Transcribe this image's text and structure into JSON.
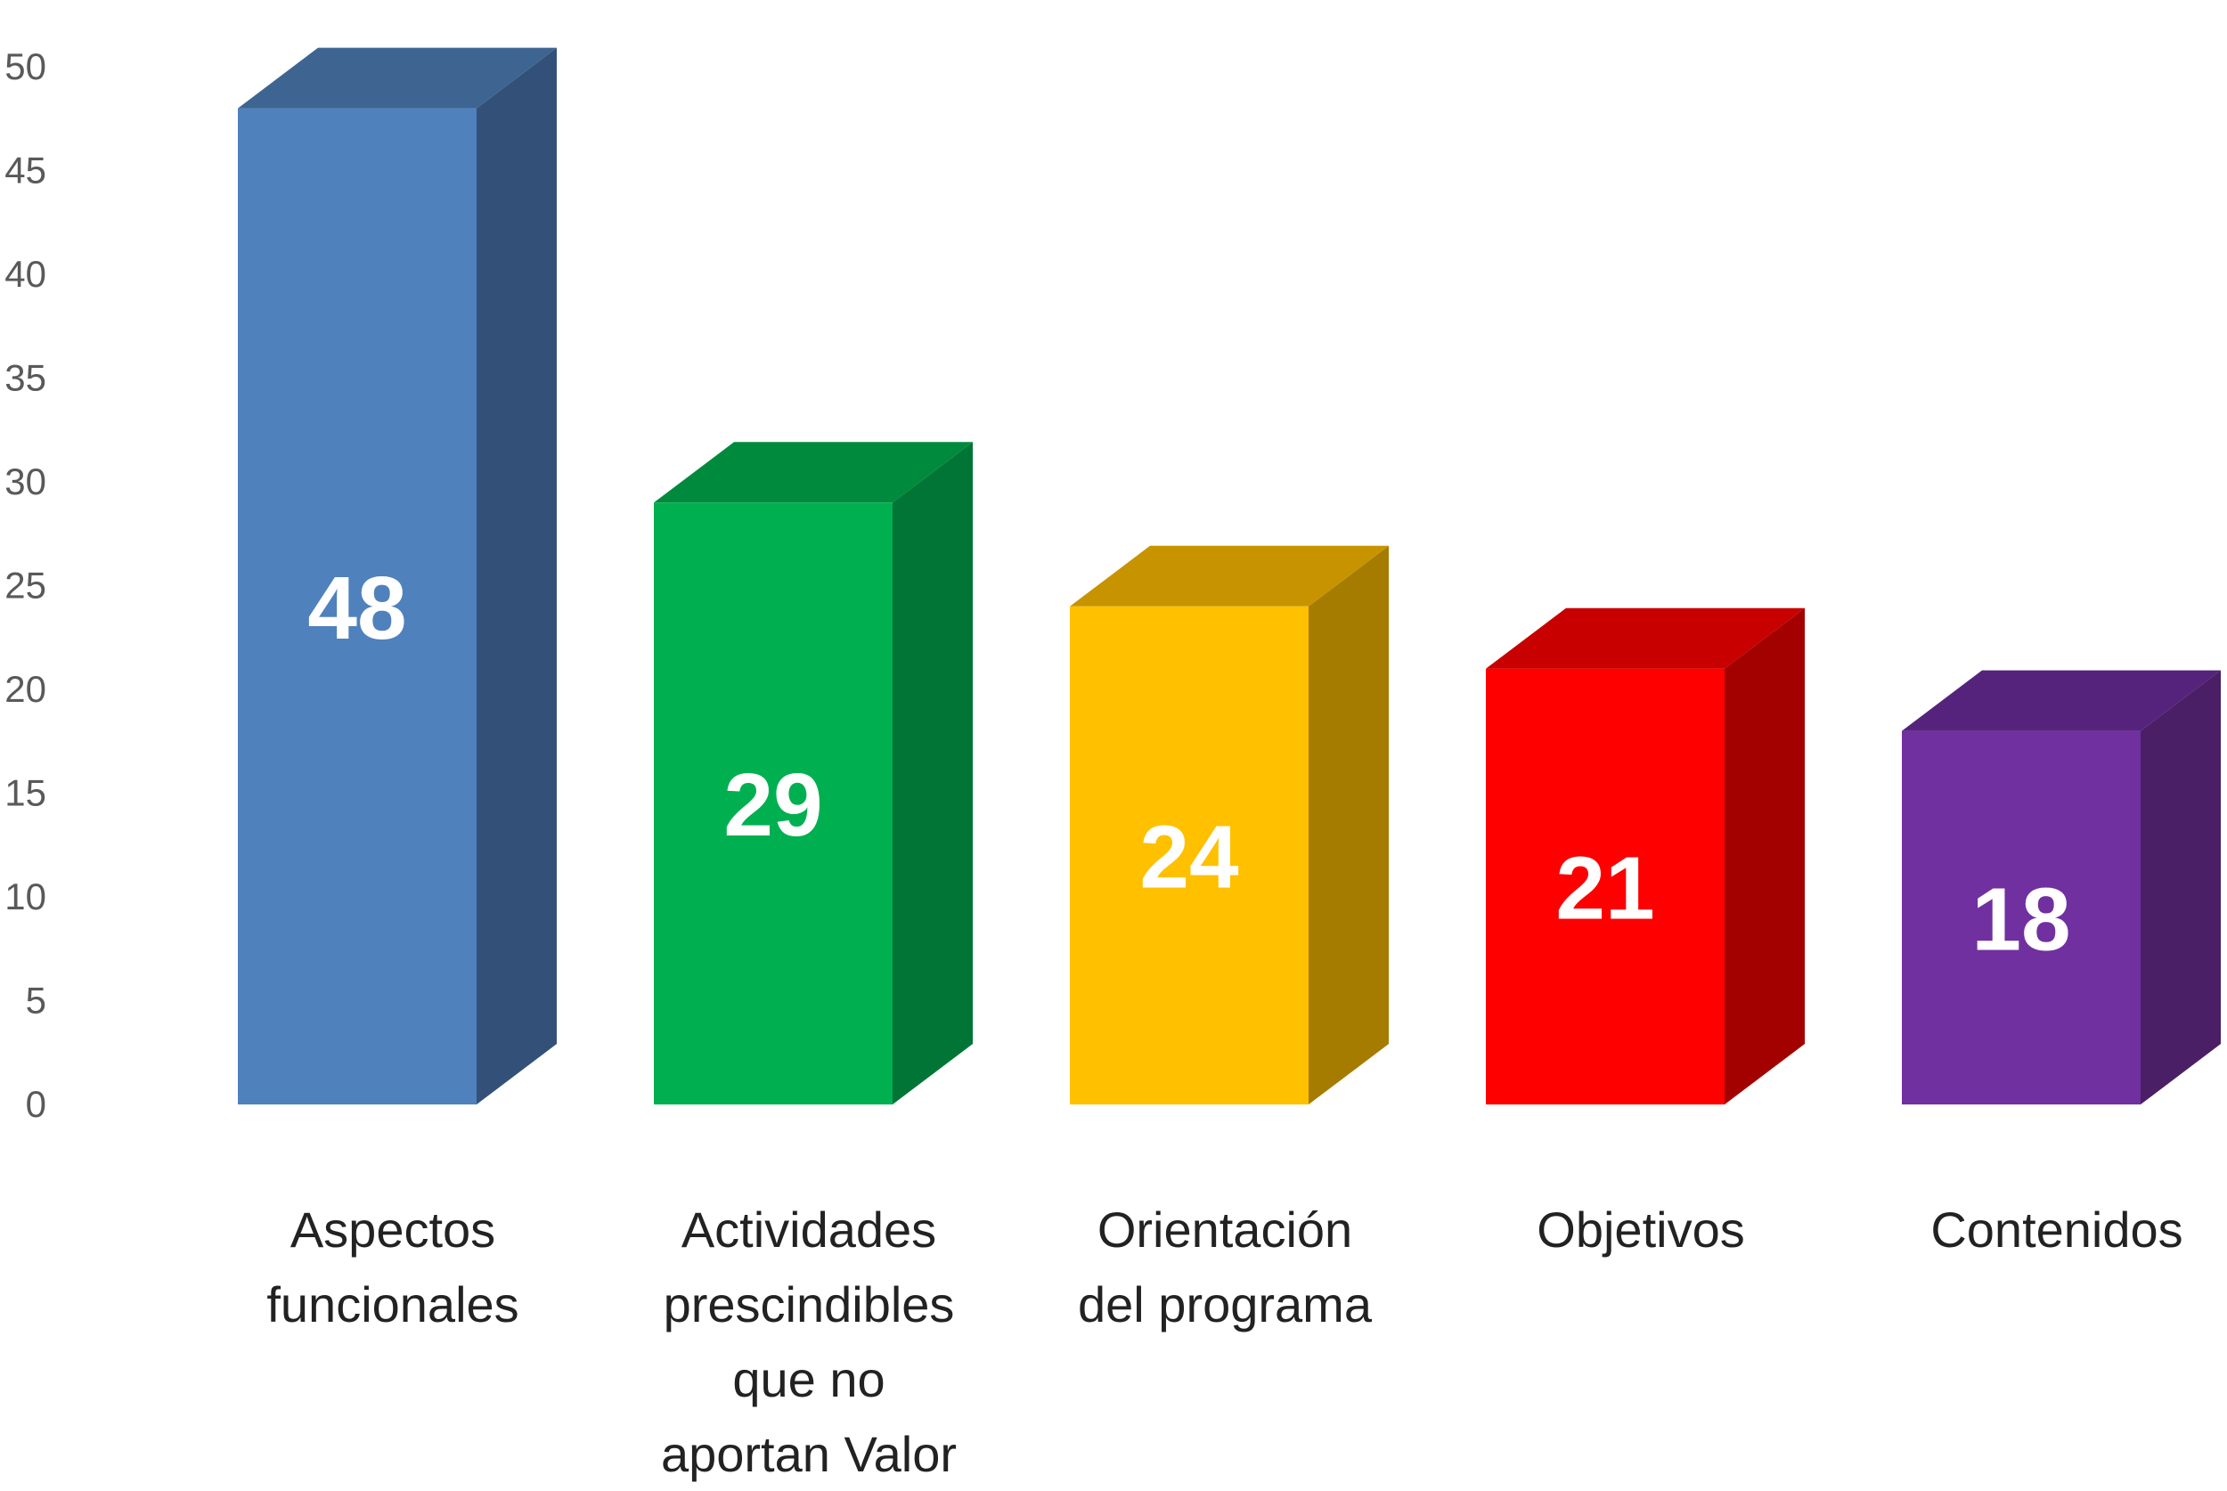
{
  "chart_data": {
    "type": "bar",
    "style": "3d-column",
    "title": "",
    "xlabel": "",
    "ylabel": "",
    "ylim": [
      0,
      50
    ],
    "yticks": [
      "0",
      "5",
      "10",
      "15",
      "20",
      "25",
      "30",
      "35",
      "40",
      "45",
      "50"
    ],
    "grid": false,
    "legend": "none",
    "categories": [
      [
        "Aspectos",
        "funcionales"
      ],
      [
        "Actividades",
        "prescindibles",
        "que no",
        "aportan Valor"
      ],
      [
        "Orientación",
        "del programa"
      ],
      [
        "Objetivos"
      ],
      [
        "Contenidos"
      ]
    ],
    "values": [
      48,
      29,
      24,
      21,
      18
    ],
    "data_labels": [
      "48",
      "29",
      "24",
      "21",
      "18"
    ],
    "colors": [
      {
        "front": "#4F81BD",
        "top": "#3E6491",
        "side": "#335178"
      },
      {
        "front": "#00B050",
        "top": "#008A3D",
        "side": "#007535"
      },
      {
        "front": "#FFC000",
        "top": "#C79400",
        "side": "#A67C00"
      },
      {
        "front": "#FF0000",
        "top": "#C80000",
        "side": "#A30000"
      },
      {
        "front": "#7030A0",
        "top": "#55237B",
        "side": "#4A1F66"
      }
    ]
  }
}
